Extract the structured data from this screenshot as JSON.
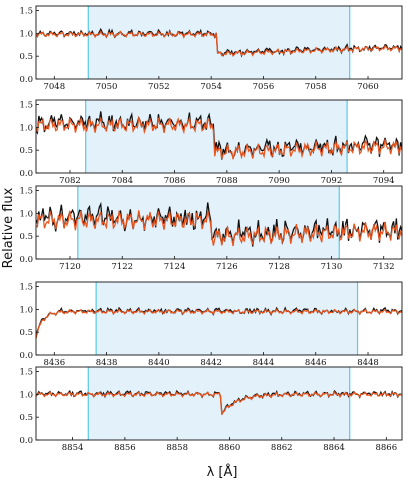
{
  "figure": {
    "ylabel": "Relative flux",
    "xlabel": "λ [Å]"
  },
  "colors": {
    "observed": "#111111",
    "model": "#e8561f",
    "region_fill": "#e3f1fb",
    "region_edge": "#5bc8e8"
  },
  "chart_data": [
    {
      "type": "line",
      "xlim": [
        7047.3,
        7061.3
      ],
      "ylim": [
        0.0,
        1.6
      ],
      "yticks": [
        "0.0",
        "0.5",
        "1.0",
        "1.5"
      ],
      "xticks": [
        "7048",
        "7050",
        "7052",
        "7054",
        "7056",
        "7058",
        "7060"
      ],
      "region": [
        7049.3,
        7059.3
      ],
      "profile": "step",
      "step_at": 7054.2,
      "level_before": 0.98,
      "level_after": 0.55,
      "noise": 0.06
    },
    {
      "type": "line",
      "xlim": [
        7080.7,
        7094.7
      ],
      "ylim": [
        0.0,
        1.6
      ],
      "yticks": [
        "0.0",
        "0.5",
        "1.0",
        "1.5"
      ],
      "xticks": [
        "7082",
        "7084",
        "7086",
        "7088",
        "7090",
        "7092",
        "7094"
      ],
      "region": [
        7082.6,
        7092.6
      ],
      "profile": "step",
      "step_at": 7087.5,
      "level_before": 1.05,
      "level_after": 0.45,
      "noise": 0.17
    },
    {
      "type": "line",
      "xlim": [
        7118.7,
        7132.7
      ],
      "ylim": [
        0.0,
        1.6
      ],
      "yticks": [
        "0.0",
        "0.5",
        "1.0",
        "1.5"
      ],
      "xticks": [
        "7120",
        "7122",
        "7124",
        "7126",
        "7128",
        "7130",
        "7132"
      ],
      "region": [
        7120.3,
        7130.3
      ],
      "profile": "step",
      "step_at": 7125.4,
      "level_before": 0.85,
      "level_after": 0.48,
      "noise": 0.22
    },
    {
      "type": "line",
      "xlim": [
        8435.3,
        8449.3
      ],
      "ylim": [
        0.0,
        1.6
      ],
      "yticks": [
        "0.0",
        "0.5",
        "1.0",
        "1.5"
      ],
      "xticks": [
        "8436",
        "8438",
        "8440",
        "8442",
        "8444",
        "8446",
        "8448"
      ],
      "region": [
        8437.6,
        8447.6
      ],
      "profile": "flat",
      "level": 0.95,
      "noise": 0.05
    },
    {
      "type": "line",
      "xlim": [
        8852.6,
        8866.6
      ],
      "ylim": [
        0.0,
        1.6
      ],
      "yticks": [
        "0.0",
        "0.5",
        "1.0",
        "1.5"
      ],
      "xticks": [
        "8854",
        "8856",
        "8858",
        "8860",
        "8862",
        "8864",
        "8866"
      ],
      "region": [
        8854.6,
        8864.6
      ],
      "profile": "dip",
      "dip_at": 8859.7,
      "level": 1.0,
      "dip_depth": 0.42,
      "noise": 0.05
    }
  ]
}
